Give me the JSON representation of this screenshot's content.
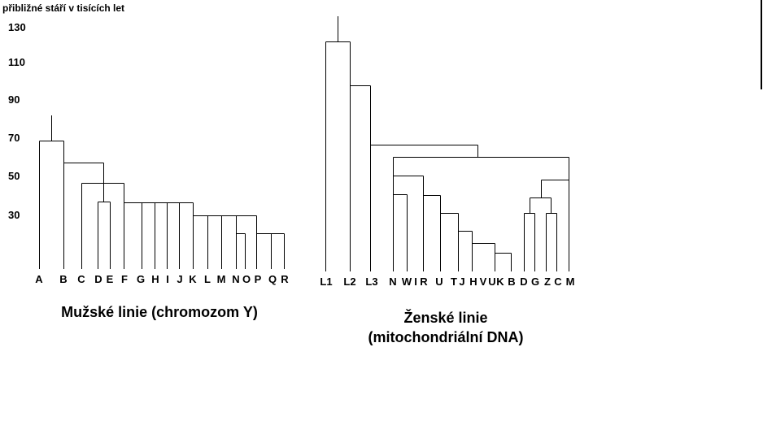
{
  "axis": {
    "title": "přibližné stáří v tisících let",
    "ticks": [
      130,
      110,
      90,
      70,
      50,
      30
    ]
  },
  "male": {
    "caption": "Mužské linie (chromozom Y)",
    "leaves": [
      "A",
      "B",
      "C",
      "D",
      "E",
      "F",
      "G",
      "H",
      "I",
      "J",
      "K",
      "L",
      "M",
      "N",
      "O",
      "P",
      "Q",
      "R"
    ]
  },
  "female": {
    "caption_line1": "Ženské linie",
    "caption_line2": "(mitochondriální DNA)",
    "leaves": [
      "L1",
      "L2",
      "L3",
      "N",
      "W",
      "I",
      "R",
      "U",
      "T",
      "J",
      "H",
      "V",
      "U",
      "K",
      "B",
      "D",
      "G",
      "Z",
      "C",
      "M"
    ]
  }
}
